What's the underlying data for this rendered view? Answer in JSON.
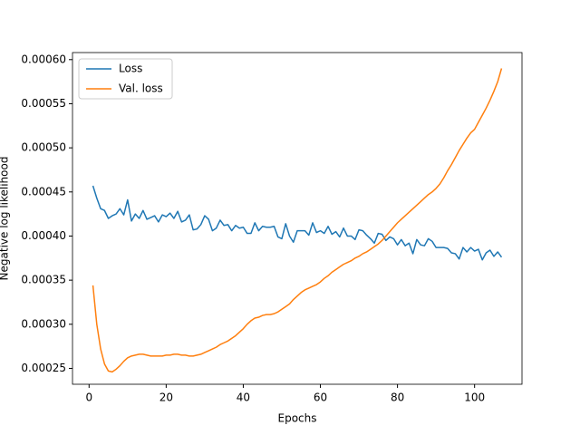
{
  "chart_data": {
    "type": "line",
    "xlabel": "Epochs",
    "ylabel": "Negative log likelihood",
    "xlim": [
      -4.3,
      112.3
    ],
    "xticks": [
      0,
      20,
      40,
      60,
      80,
      100
    ],
    "ylim": [
      0.000232,
      0.000608
    ],
    "yticks": [
      {
        "value": 0.00025,
        "label": "0.00025"
      },
      {
        "value": 0.0003,
        "label": "0.00030"
      },
      {
        "value": 0.00035,
        "label": "0.00035"
      },
      {
        "value": 0.0004,
        "label": "0.00040"
      },
      {
        "value": 0.00045,
        "label": "0.00045"
      },
      {
        "value": 0.0005,
        "label": "0.00050"
      },
      {
        "value": 0.00055,
        "label": "0.00055"
      },
      {
        "value": 0.0006,
        "label": "0.00060"
      }
    ],
    "grid": false,
    "legend": "upper left",
    "x": [
      1,
      2,
      3,
      4,
      5,
      6,
      7,
      8,
      9,
      10,
      11,
      12,
      13,
      14,
      15,
      16,
      17,
      18,
      19,
      20,
      21,
      22,
      23,
      24,
      25,
      26,
      27,
      28,
      29,
      30,
      31,
      32,
      33,
      34,
      35,
      36,
      37,
      38,
      39,
      40,
      41,
      42,
      43,
      44,
      45,
      46,
      47,
      48,
      49,
      50,
      51,
      52,
      53,
      54,
      55,
      56,
      57,
      58,
      59,
      60,
      61,
      62,
      63,
      64,
      65,
      66,
      67,
      68,
      69,
      70,
      71,
      72,
      73,
      74,
      75,
      76,
      77,
      78,
      79,
      80,
      81,
      82,
      83,
      84,
      85,
      86,
      87,
      88,
      89,
      90,
      91,
      92,
      93,
      94,
      95,
      96,
      97,
      98,
      99,
      100,
      101,
      102,
      103,
      104,
      105,
      106,
      107
    ],
    "series": [
      {
        "name": "Loss",
        "color": "#1f77b4",
        "values": [
          0.000457,
          0.000443,
          0.000431,
          0.000429,
          0.00042,
          0.000423,
          0.000425,
          0.000431,
          0.000424,
          0.000441,
          0.000417,
          0.000425,
          0.00042,
          0.000429,
          0.000419,
          0.000421,
          0.000423,
          0.000416,
          0.000424,
          0.000422,
          0.000426,
          0.00042,
          0.000428,
          0.000416,
          0.000418,
          0.000424,
          0.000407,
          0.000408,
          0.000413,
          0.000423,
          0.000419,
          0.000406,
          0.000409,
          0.000418,
          0.000412,
          0.000413,
          0.000406,
          0.000412,
          0.000409,
          0.00041,
          0.000403,
          0.000403,
          0.000415,
          0.000406,
          0.000411,
          0.00041,
          0.00041,
          0.000411,
          0.000399,
          0.000397,
          0.000414,
          0.0004,
          0.000393,
          0.000406,
          0.000406,
          0.000406,
          0.000401,
          0.000415,
          0.000404,
          0.000406,
          0.000403,
          0.000411,
          0.000402,
          0.000405,
          0.000399,
          0.000409,
          0.0004,
          0.0004,
          0.000396,
          0.000407,
          0.000406,
          0.000401,
          0.000397,
          0.000392,
          0.000403,
          0.000402,
          0.000395,
          0.000399,
          0.000397,
          0.00039,
          0.000396,
          0.000389,
          0.000392,
          0.00038,
          0.000396,
          0.00039,
          0.000389,
          0.000397,
          0.000394,
          0.000387,
          0.000387,
          0.000387,
          0.000386,
          0.000381,
          0.00038,
          0.000374,
          0.000387,
          0.000382,
          0.000387,
          0.000383,
          0.000385,
          0.000373,
          0.000381,
          0.000384,
          0.000377,
          0.000382,
          0.000376
        ]
      },
      {
        "name": "Val. loss",
        "color": "#ff7f0e",
        "values": [
          0.000344,
          0.0003,
          0.000272,
          0.000255,
          0.000247,
          0.000246,
          0.000249,
          0.000253,
          0.000258,
          0.000262,
          0.000264,
          0.000265,
          0.000266,
          0.000266,
          0.000265,
          0.000264,
          0.000264,
          0.000264,
          0.000264,
          0.000265,
          0.000265,
          0.000266,
          0.000266,
          0.000265,
          0.000265,
          0.000264,
          0.000264,
          0.000265,
          0.000266,
          0.000268,
          0.00027,
          0.000272,
          0.000274,
          0.000277,
          0.000279,
          0.000281,
          0.000284,
          0.000287,
          0.000291,
          0.000295,
          0.0003,
          0.000304,
          0.000307,
          0.000308,
          0.00031,
          0.000311,
          0.000311,
          0.000312,
          0.000314,
          0.000317,
          0.00032,
          0.000323,
          0.000328,
          0.000332,
          0.000336,
          0.000339,
          0.000341,
          0.000343,
          0.000345,
          0.000348,
          0.000352,
          0.000355,
          0.000359,
          0.000362,
          0.000365,
          0.000368,
          0.00037,
          0.000372,
          0.000375,
          0.000377,
          0.00038,
          0.000382,
          0.000385,
          0.000388,
          0.000391,
          0.000395,
          0.0004,
          0.000405,
          0.00041,
          0.000415,
          0.000419,
          0.000423,
          0.000427,
          0.000431,
          0.000435,
          0.000439,
          0.000443,
          0.000447,
          0.00045,
          0.000454,
          0.000459,
          0.000466,
          0.000474,
          0.000481,
          0.000489,
          0.000497,
          0.000504,
          0.000511,
          0.000517,
          0.000521,
          0.000529,
          0.000537,
          0.000545,
          0.000554,
          0.000564,
          0.000575,
          0.00059
        ]
      }
    ]
  }
}
